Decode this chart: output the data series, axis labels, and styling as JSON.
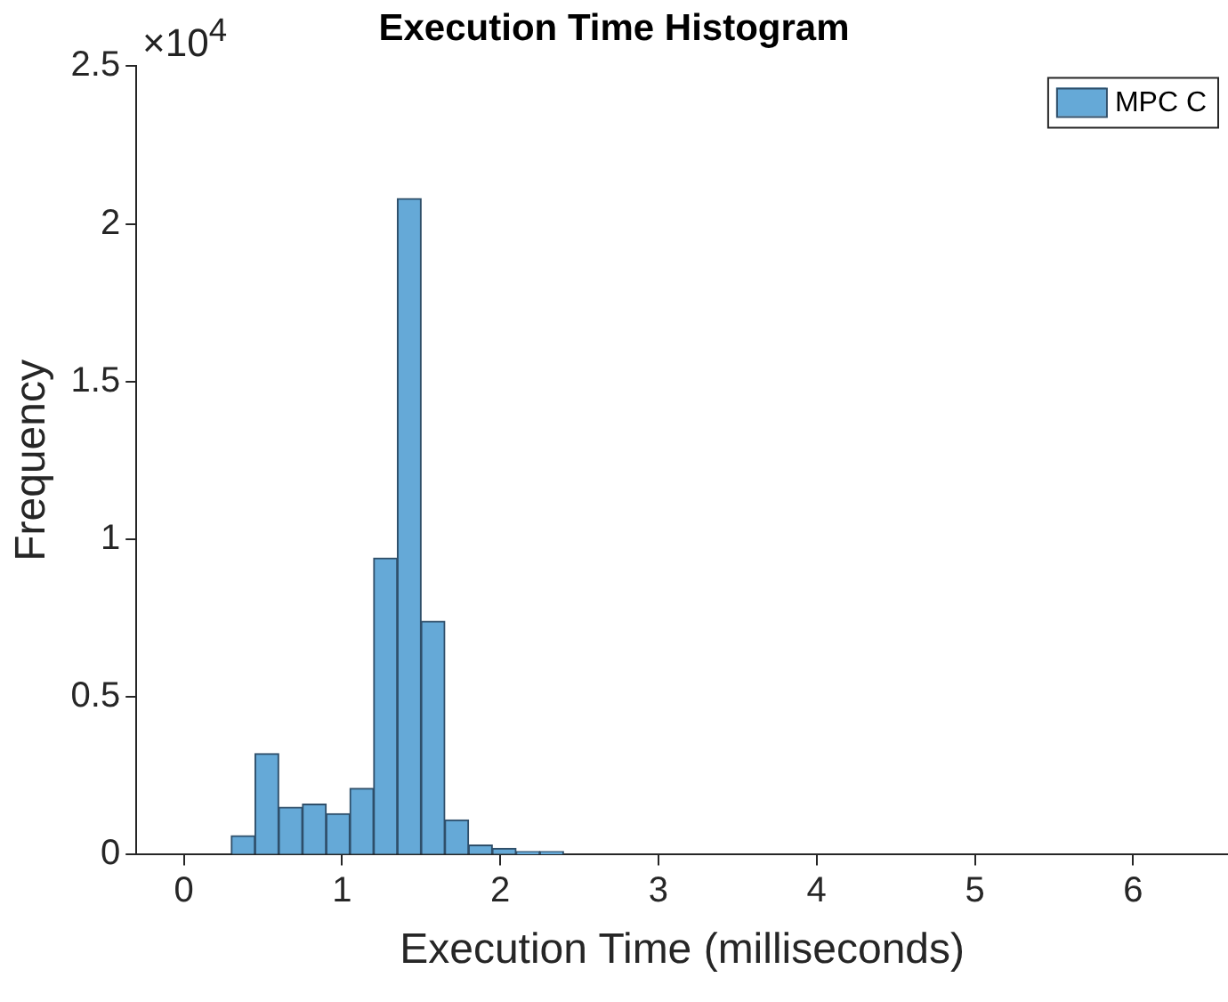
{
  "chart_data": {
    "type": "histogram",
    "title": "Execution Time Histogram",
    "xlabel": "Execution Time (milliseconds)",
    "ylabel": "Frequency",
    "bins": [
      0,
      0.15,
      0.3,
      0.45,
      0.6,
      0.75,
      0.9,
      1.05,
      1.2,
      1.35,
      1.5,
      1.65,
      1.8,
      1.95,
      2.1,
      2.25,
      2.4,
      2.55,
      2.7,
      2.85,
      3,
      3.15,
      3.3,
      3.45,
      3.6,
      3.75,
      3.9,
      4.05,
      4.2,
      4.35,
      4.5,
      4.65,
      4.8,
      4.95,
      5.1,
      5.25,
      5.4,
      5.55,
      5.7,
      5.85,
      6,
      6.15,
      6.3,
      6.45
    ],
    "series": [
      {
        "name": "MPC C",
        "color": "#65a9d7",
        "values": [
          0,
          0,
          0.06,
          0.32,
          0.15,
          0.16,
          0.13,
          0.21,
          0.94,
          2.08,
          0.74,
          0.11,
          0.03,
          0.02,
          0.01,
          0.01,
          0,
          0,
          0,
          0,
          0,
          0,
          0,
          0,
          0,
          0,
          0,
          0,
          0,
          0,
          0,
          0,
          0,
          0,
          0,
          0,
          0,
          0,
          0,
          0,
          0,
          0,
          0
        ]
      }
    ],
    "xlim": [
      -0.3,
      6.6
    ],
    "xticks": [
      0,
      1,
      2,
      3,
      4,
      5,
      6
    ],
    "ylim": [
      0,
      2.5
    ],
    "yticks": [
      0,
      0.5,
      1,
      1.5,
      2,
      2.5
    ],
    "annotations": [
      "×10$^{4}$"
    ],
    "legend": "top right",
    "grid": false
  }
}
